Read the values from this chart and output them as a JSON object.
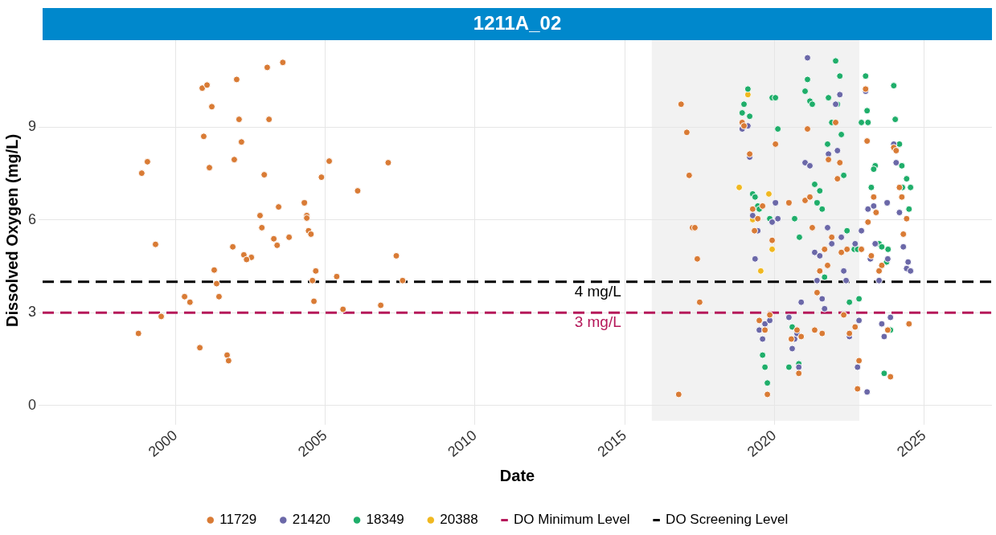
{
  "chart_data": {
    "type": "scatter",
    "title": "1211A_02",
    "xlabel": "Date",
    "ylabel": "Dissolved Oxygen (mg/L)",
    "xlim": [
      1995.56,
      2027.26
    ],
    "xticks": [
      2000,
      2005,
      2010,
      2015,
      2020,
      2025
    ],
    "ylim": [
      -0.49,
      11.81
    ],
    "yticks": [
      0,
      3,
      6,
      9
    ],
    "grid": true,
    "legend": "bottom",
    "marker": "circle",
    "bands": [
      {
        "axis": "x",
        "from": 2015.9,
        "to": 2022.83,
        "color": "#f2f2f2"
      }
    ],
    "ref_lines": [
      {
        "axis": "y",
        "value": 3,
        "label": "DO Minimum Level",
        "color": "#b5185a",
        "line_style": "dashed"
      },
      {
        "axis": "y",
        "value": 4,
        "label": "DO Screening Level",
        "color": "#000000",
        "line_style": "dashed"
      }
    ],
    "annotations": [
      {
        "text": "4 mg/L",
        "x": 2014.1,
        "y": 4
      },
      {
        "text": "3 mg/L",
        "x": 2014.1,
        "y": 3
      }
    ],
    "series": [
      {
        "name": "11729",
        "color": "#d97b35",
        "x": [
          2003.58,
          2003.06,
          2002.04,
          2000.89,
          2001.05,
          2001.21,
          2002.12,
          2003.12,
          2000.94,
          2002.2,
          1999.06,
          1998.87,
          2001.96,
          2001.13,
          2002.96,
          2005.13,
          2004.87,
          2007.1,
          2006.08,
          2004.3,
          2003.44,
          2002.82,
          2004.38,
          2004.38,
          2002.88,
          2004.44,
          2004.52,
          2003.28,
          2003.79,
          2003.39,
          1999.33,
          2001.91,
          2002.28,
          2002.53,
          2002.37,
          2007.37,
          2001.29,
          2004.68,
          2005.38,
          2004.57,
          2007.58,
          2001.37,
          2000.3,
          2001.45,
          2000.48,
          2004.62,
          2006.85,
          2005.59,
          1999.52,
          1998.76,
          2000.81,
          2001.72,
          2001.77,
          2016.88,
          2017.07,
          2017.15,
          2018.92,
          2018.98,
          2020.03,
          2019.17,
          2020.48,
          2019.6,
          2019.27,
          2019.44,
          2017.26,
          2017.34,
          2019.33,
          2017.42,
          2017.5,
          2016.8,
          2019.92,
          2019.49,
          2019.68,
          2019.84,
          2019.76,
          2020.75,
          2020.56,
          2020.81,
          2023.04,
          2022.04,
          2021.1,
          2023.09,
          2023.98,
          2024.06,
          2021.8,
          2022.18,
          2022.1,
          2024.17,
          2021.02,
          2021.18,
          2023.31,
          2024.25,
          2023.39,
          2024.41,
          2023.12,
          2021.26,
          2024.3,
          2021.91,
          2021.67,
          2022.42,
          2022.23,
          2022.9,
          2021.77,
          2021.51,
          2023.23,
          2023.58,
          2023.49,
          2021.42,
          2022.31,
          2022.69,
          2022.5,
          2021.34,
          2021.59,
          2020.89,
          2023.78,
          2024.49,
          2022.82,
          2023.87,
          2022.77
        ],
        "values": [
          11.09,
          10.93,
          10.54,
          10.26,
          10.36,
          9.66,
          9.25,
          9.25,
          8.7,
          8.52,
          7.88,
          7.51,
          7.95,
          7.69,
          7.46,
          7.9,
          7.38,
          7.85,
          6.94,
          6.55,
          6.42,
          6.14,
          6.14,
          6.06,
          5.75,
          5.65,
          5.54,
          5.39,
          5.44,
          5.18,
          5.21,
          5.13,
          4.87,
          4.79,
          4.72,
          4.84,
          4.38,
          4.35,
          4.17,
          4.04,
          4.04,
          3.94,
          3.52,
          3.52,
          3.34,
          3.37,
          3.24,
          3.11,
          2.88,
          2.33,
          1.87,
          1.63,
          1.45,
          9.74,
          8.83,
          7.44,
          9.15,
          9.04,
          8.45,
          8.13,
          6.55,
          6.45,
          6.35,
          6.04,
          5.75,
          5.75,
          5.65,
          4.74,
          3.34,
          0.36,
          5.34,
          2.75,
          2.44,
          2.93,
          0.36,
          2.44,
          2.15,
          1.04,
          10.23,
          9.15,
          8.94,
          8.55,
          8.34,
          8.24,
          7.95,
          7.85,
          7.33,
          7.05,
          6.63,
          6.74,
          6.74,
          6.74,
          6.24,
          6.04,
          5.93,
          5.75,
          5.54,
          5.44,
          5.05,
          5.05,
          4.95,
          5.05,
          4.53,
          4.35,
          4.84,
          4.53,
          4.35,
          3.65,
          2.93,
          2.54,
          2.33,
          2.44,
          2.33,
          2.23,
          2.44,
          2.64,
          1.45,
          0.93,
          0.54
        ]
      },
      {
        "name": "21420",
        "color": "#6b68a8",
        "x": [
          2018.92,
          2019.11,
          2019.17,
          2020.03,
          2019.27,
          2020.11,
          2019.92,
          2019.44,
          2019.35,
          2019.68,
          2019.84,
          2019.49,
          2019.6,
          2020.48,
          2020.59,
          2020.67,
          2020.75,
          2020.81,
          2021.1,
          2022.18,
          2022.04,
          2023.04,
          2021.8,
          2022.1,
          2021.02,
          2021.18,
          2023.98,
          2024.06,
          2023.76,
          2023.12,
          2023.31,
          2024.17,
          2021.77,
          2022.9,
          2022.23,
          2021.91,
          2021.34,
          2021.51,
          2022.69,
          2023.36,
          2024.3,
          2023.2,
          2023.78,
          2024.46,
          2024.41,
          2024.54,
          2022.31,
          2021.42,
          2022.39,
          2023.49,
          2020.89,
          2021.59,
          2021.67,
          2022.82,
          2023.58,
          2023.87,
          2023.66,
          2022.5,
          2022.77,
          2023.09
        ],
        "values": [
          8.94,
          9.04,
          8.03,
          6.55,
          6.14,
          6.04,
          5.93,
          5.65,
          4.74,
          2.64,
          2.75,
          2.44,
          2.15,
          2.85,
          1.84,
          2.15,
          2.33,
          1.24,
          11.24,
          10.05,
          9.74,
          10.16,
          8.13,
          8.24,
          7.85,
          7.75,
          8.45,
          7.85,
          6.55,
          6.35,
          6.45,
          6.24,
          5.75,
          5.65,
          5.44,
          5.23,
          4.95,
          4.84,
          5.23,
          5.23,
          5.13,
          4.74,
          4.74,
          4.64,
          4.43,
          4.35,
          4.35,
          4.04,
          4.04,
          4.04,
          3.34,
          3.45,
          3.13,
          2.75,
          2.64,
          2.85,
          2.23,
          2.23,
          1.24,
          0.44
        ]
      },
      {
        "name": "18349",
        "color": "#1fae6a",
        "x": [
          2019.11,
          2018.98,
          2018.92,
          2019.17,
          2019.92,
          2020.03,
          2020.11,
          2019.27,
          2019.35,
          2019.44,
          2019.49,
          2019.84,
          2020.67,
          2020.83,
          2019.6,
          2019.68,
          2019.76,
          2020.59,
          2020.48,
          2020.81,
          2022.04,
          2022.18,
          2021.1,
          2021.02,
          2021.18,
          2021.26,
          2021.8,
          2022.1,
          2023.04,
          2023.98,
          2023.09,
          2024.03,
          2021.91,
          2022.9,
          2023.12,
          2022.23,
          2021.77,
          2024.17,
          2023.36,
          2023.31,
          2024.25,
          2022.31,
          2021.34,
          2021.51,
          2024.41,
          2023.23,
          2024.27,
          2024.54,
          2021.42,
          2021.59,
          2024.49,
          2022.42,
          2022.66,
          2022.77,
          2023.49,
          2023.58,
          2023.79,
          2023.74,
          2021.67,
          2022.5,
          2022.82,
          2023.87,
          2023.66
        ],
        "values": [
          10.23,
          9.74,
          9.46,
          9.35,
          9.95,
          9.95,
          8.94,
          6.84,
          6.74,
          6.45,
          6.35,
          6.04,
          6.04,
          5.44,
          1.63,
          1.24,
          0.73,
          2.54,
          1.24,
          1.35,
          11.14,
          10.65,
          10.54,
          10.16,
          9.84,
          9.74,
          9.95,
          9.74,
          10.65,
          10.34,
          9.53,
          9.25,
          9.15,
          9.15,
          9.15,
          8.76,
          8.45,
          8.45,
          7.75,
          7.64,
          7.75,
          7.44,
          7.15,
          6.94,
          7.33,
          7.05,
          7.05,
          7.05,
          6.55,
          6.35,
          6.35,
          5.65,
          5.05,
          5.05,
          5.23,
          5.13,
          5.05,
          4.64,
          4.15,
          3.34,
          3.45,
          2.44,
          1.04
        ]
      },
      {
        "name": "20388",
        "color": "#f0b820",
        "x": [
          2019.11,
          2018.82,
          2019.81,
          2019.27,
          2019.92,
          2019.54
        ],
        "values": [
          10.05,
          7.05,
          6.84,
          6.01,
          5.05,
          4.35
        ]
      }
    ]
  }
}
